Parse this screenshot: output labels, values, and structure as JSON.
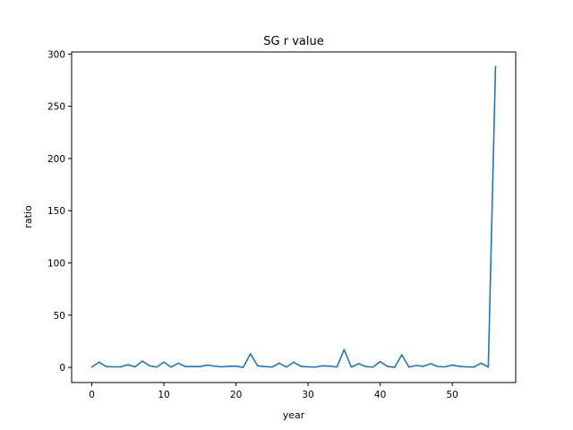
{
  "chart_data": {
    "type": "line",
    "title": "SG r value",
    "xlabel": "year",
    "ylabel": "ratio",
    "xlim": [
      -2.8,
      58.8
    ],
    "ylim": [
      -14.5,
      302
    ],
    "xticks": [
      0,
      10,
      20,
      30,
      40,
      50
    ],
    "yticks": [
      0,
      50,
      100,
      150,
      200,
      250,
      300
    ],
    "grid": false,
    "series": [
      {
        "color": "#1f77b4",
        "x": [
          0,
          1,
          2,
          3,
          4,
          5,
          6,
          7,
          8,
          9,
          10,
          11,
          12,
          13,
          14,
          15,
          16,
          17,
          18,
          19,
          20,
          21,
          22,
          23,
          24,
          25,
          26,
          27,
          28,
          29,
          30,
          31,
          32,
          33,
          34,
          35,
          36,
          37,
          38,
          39,
          40,
          41,
          42,
          43,
          44,
          45,
          46,
          47,
          48,
          49,
          50,
          51,
          52,
          53,
          54,
          55,
          56
        ],
        "y": [
          0.3,
          5,
          0.8,
          0.5,
          0.5,
          2.5,
          0.5,
          6,
          1.5,
          0.3,
          5,
          0.3,
          4,
          0.8,
          0.8,
          0.8,
          2.2,
          1.2,
          0.5,
          1,
          1.2,
          0,
          13,
          1.5,
          0.8,
          0.3,
          4,
          0.3,
          5,
          1,
          0.5,
          0.3,
          1.5,
          1.2,
          0.3,
          17,
          0.3,
          3.5,
          0.8,
          0.3,
          5.5,
          1,
          0,
          12,
          0.3,
          1.8,
          1,
          3.5,
          0.8,
          0.5,
          2.2,
          1,
          0.5,
          0.3,
          4,
          0.3,
          288
        ]
      }
    ]
  }
}
